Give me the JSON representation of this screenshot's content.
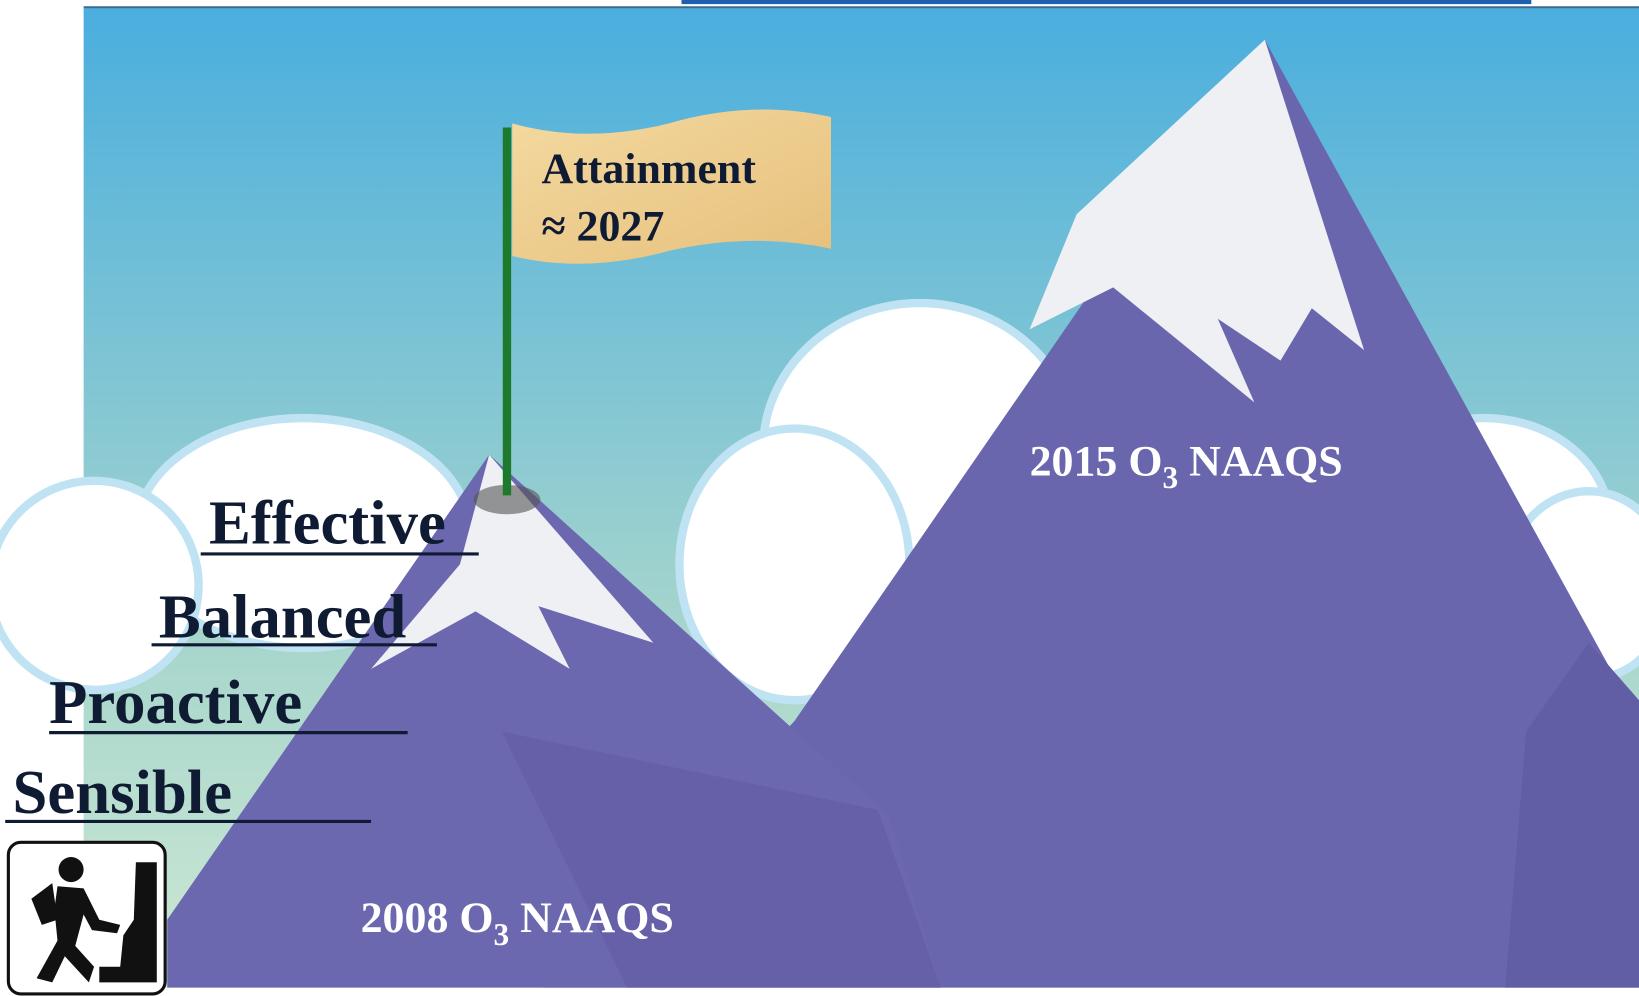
{
  "flag": {
    "line1": "Attainment",
    "line2": "≈ 2027"
  },
  "steps": [
    "Effective",
    "Balanced",
    "Proactive",
    "Sensible"
  ],
  "peaks": [
    {
      "before": "2015 O",
      "sub": "3",
      "after": " NAAQS"
    },
    {
      "before": "2008 O",
      "sub": "3",
      "after": " NAAQS"
    }
  ]
}
